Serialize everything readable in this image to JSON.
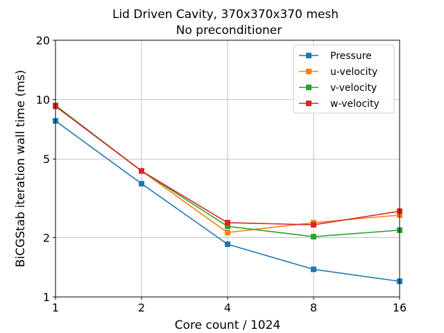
{
  "chart_data": {
    "type": "line",
    "title": "Lid Driven Cavity, 370x370x370 mesh",
    "subtitle": "No preconditioner",
    "xlabel": "Core count / 1024",
    "ylabel": "BiCGStab iteration wall time (ms)",
    "xscale": "log2",
    "yscale": "log10",
    "x": [
      1,
      2,
      4,
      8,
      16
    ],
    "xticks": [
      "1",
      "2",
      "4",
      "8",
      "16"
    ],
    "yticks": [
      1,
      2,
      5,
      10,
      20
    ],
    "ytick_labels": [
      "1",
      "2",
      "5",
      "10",
      "20"
    ],
    "xlim": [
      1,
      16
    ],
    "ylim": [
      1,
      20
    ],
    "grid": true,
    "legend_position": "top-right",
    "series": [
      {
        "name": "Pressure",
        "color": "#1f77b4",
        "values": [
          7.8,
          3.75,
          1.85,
          1.38,
          1.2
        ]
      },
      {
        "name": "u-velocity",
        "color": "#ff7f0e",
        "values": [
          9.3,
          4.35,
          2.12,
          2.38,
          2.6
        ]
      },
      {
        "name": "v-velocity",
        "color": "#2ca02c",
        "values": [
          9.35,
          4.35,
          2.28,
          2.02,
          2.18
        ]
      },
      {
        "name": "w-velocity",
        "color": "#d62728",
        "values": [
          9.25,
          4.35,
          2.38,
          2.32,
          2.72
        ]
      }
    ]
  }
}
